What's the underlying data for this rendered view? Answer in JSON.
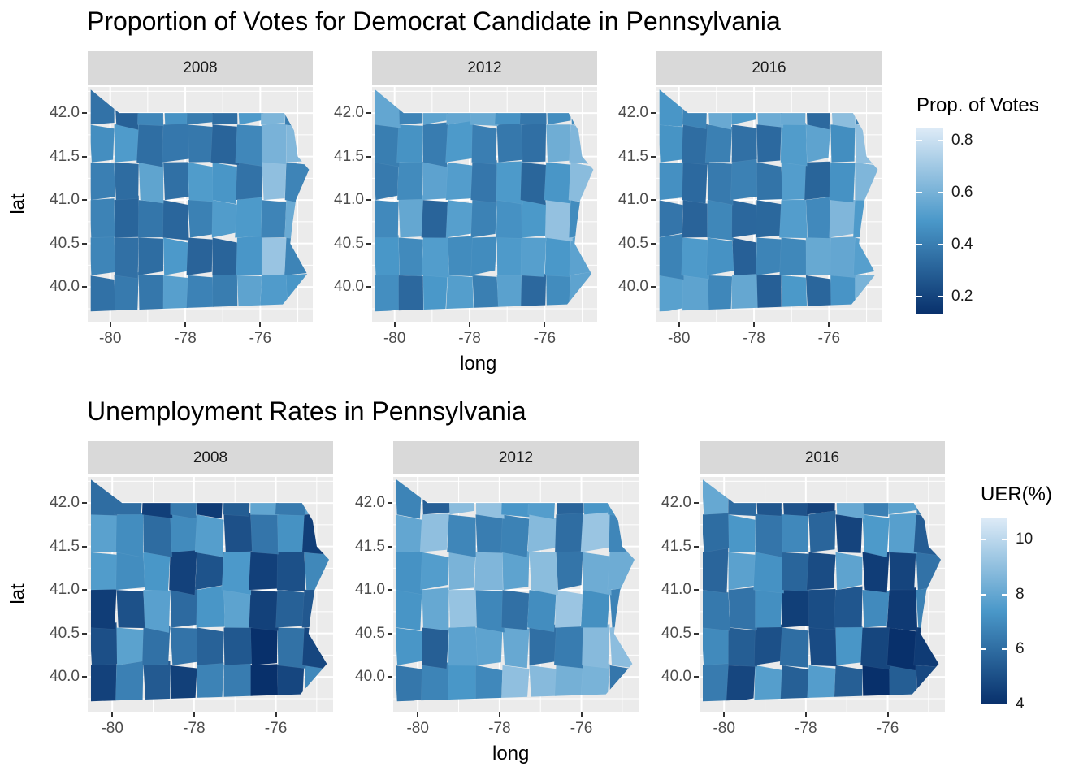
{
  "colors": {
    "panel_bg": "#ebebeb",
    "grid": "#ffffff",
    "strip_bg": "#d9d9d9",
    "scale_low": "#08306b",
    "scale_mid": "#4a98c9",
    "scale_high": "#deebf7"
  },
  "top": {
    "title": "Proportion of Votes for Democrat Candidate in Pennsylvania",
    "ylabel": "lat",
    "xlabel": "long",
    "facets": [
      "2008",
      "2012",
      "2016"
    ],
    "legend": {
      "title": "Prop. of Votes",
      "ticks": [
        "0.8",
        "0.6",
        "0.4",
        "0.2"
      ]
    }
  },
  "bottom": {
    "title": "Unemployment Rates in Pennsylvania",
    "ylabel": "lat",
    "xlabel": "long",
    "facets": [
      "2008",
      "2012",
      "2016"
    ],
    "legend": {
      "title": "UER(%)",
      "ticks": [
        "10",
        "8",
        "6",
        "4"
      ]
    }
  },
  "chart_data": [
    {
      "type": "heatmap",
      "title": "Proportion of Votes for Democrat Candidate in Pennsylvania",
      "xlabel": "long",
      "ylabel": "lat",
      "x_ticks": [
        -80,
        -78,
        -76
      ],
      "y_ticks": [
        40.0,
        40.5,
        41.0,
        41.5,
        42.0
      ],
      "xlim": [
        -80.6,
        -74.6
      ],
      "ylim": [
        39.6,
        42.3
      ],
      "facets": [
        "2008",
        "2012",
        "2016"
      ],
      "legend_title": "Prop. of Votes",
      "legend_ticks": [
        0.2,
        0.4,
        0.6,
        0.8
      ],
      "scale_range": [
        0.13,
        0.85
      ]
    },
    {
      "type": "heatmap",
      "title": "Unemployment Rates in Pennsylvania",
      "xlabel": "long",
      "ylabel": "lat",
      "x_ticks": [
        -80,
        -78,
        -76
      ],
      "y_ticks": [
        40.0,
        40.5,
        41.0,
        41.5,
        42.0
      ],
      "xlim": [
        -80.6,
        -74.6
      ],
      "ylim": [
        39.6,
        42.3
      ],
      "facets": [
        "2008",
        "2012",
        "2016"
      ],
      "legend_title": "UER(%)",
      "legend_ticks": [
        4,
        6,
        8,
        10
      ],
      "scale_range": [
        4,
        10.8
      ]
    }
  ]
}
